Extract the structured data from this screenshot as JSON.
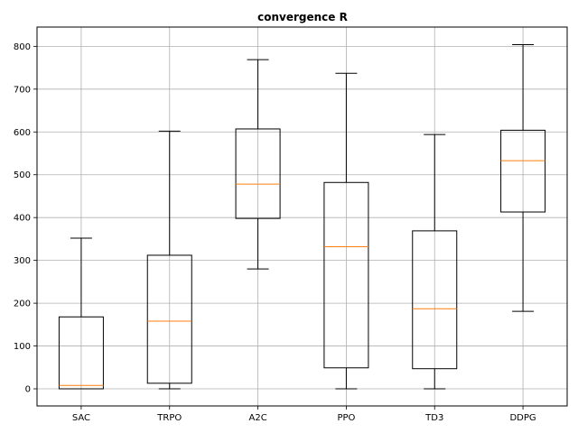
{
  "chart_data": {
    "type": "boxplot",
    "title": "convergence R",
    "xlabel": "",
    "ylabel": "",
    "ylim": [
      -40,
      845
    ],
    "yticks": [
      0,
      100,
      200,
      300,
      400,
      500,
      600,
      700,
      800
    ],
    "grid": true,
    "categories": [
      "SAC",
      "TRPO",
      "A2C",
      "PPO",
      "TD3",
      "DDPG"
    ],
    "boxes": [
      {
        "label": "SAC",
        "whislo": 0,
        "q1": 0,
        "med": 8,
        "q3": 168,
        "whishi": 352
      },
      {
        "label": "TRPO",
        "whislo": 0,
        "q1": 13,
        "med": 158,
        "q3": 312,
        "whishi": 602
      },
      {
        "label": "A2C",
        "whislo": 280,
        "q1": 398,
        "med": 478,
        "q3": 607,
        "whishi": 769
      },
      {
        "label": "PPO",
        "whislo": 0,
        "q1": 49,
        "med": 332,
        "q3": 482,
        "whishi": 737
      },
      {
        "label": "TD3",
        "whislo": 0,
        "q1": 47,
        "med": 187,
        "q3": 369,
        "whishi": 594
      },
      {
        "label": "DDPG",
        "whislo": 181,
        "q1": 413,
        "med": 533,
        "q3": 604,
        "whishi": 804
      }
    ],
    "colors": {
      "box": "#000000",
      "median": "#ff7f0e",
      "grid": "#b0b0b0"
    }
  }
}
